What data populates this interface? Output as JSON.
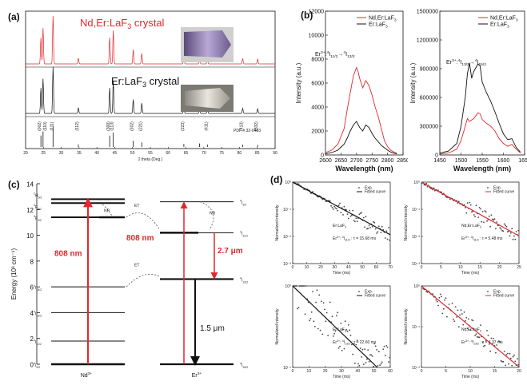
{
  "panel_labels": {
    "a": "(a)",
    "b": "(b)",
    "c": "(c)",
    "d": "(d)"
  },
  "colors": {
    "red": "#e0282e",
    "black": "#111111",
    "gray": "#555555"
  },
  "chart_data": [
    {
      "id": "a",
      "type": "line",
      "series": [
        {
          "name": "Nd,Er:LaF3 crystal",
          "color": "#e0282e"
        },
        {
          "name": "Er:LaF3 crystal",
          "color": "#111111"
        }
      ],
      "xlabel": "2 theta (Deg.)",
      "xlim": [
        20,
        90
      ],
      "x_ticks": [
        "20",
        "25",
        "30",
        "35",
        "40",
        "45",
        "50",
        "55",
        "60",
        "65",
        "70",
        "75",
        "80",
        "85",
        "90"
      ],
      "pdf_label": "PDF # 32-0483",
      "peaks": [
        {
          "x": 24.3,
          "h": 0.55,
          "hkl": "(002)"
        },
        {
          "x": 24.9,
          "h": 0.75,
          "hkl": "(110)"
        },
        {
          "x": 27.7,
          "h": 1.0,
          "hkl": "(111)"
        },
        {
          "x": 34.8,
          "h": 0.12,
          "hkl": "(112)"
        },
        {
          "x": 43.6,
          "h": 0.55,
          "hkl": "(300)"
        },
        {
          "x": 44.6,
          "h": 0.7,
          "hkl": "(113)"
        },
        {
          "x": 50.2,
          "h": 0.3,
          "hkl": "(302)"
        },
        {
          "x": 52.6,
          "h": 0.22,
          "hkl": "(221)"
        },
        {
          "x": 64.4,
          "h": 0.15,
          "hkl": "(223)"
        },
        {
          "x": 68.8,
          "h": 0.17,
          "hkl": ""
        },
        {
          "x": 71.0,
          "h": 0.12,
          "hkl": "(411)"
        },
        {
          "x": 80.9,
          "h": 0.11,
          "hkl": "(413)"
        },
        {
          "x": 85.1,
          "h": 0.1,
          "hkl": "(332)"
        }
      ]
    },
    {
      "id": "b-left",
      "type": "line",
      "xlabel": "Wavelength (nm)",
      "ylabel": "Intensity (a.u.)",
      "xlim": [
        2600,
        2850
      ],
      "ylim": [
        0,
        12000
      ],
      "x_ticks": [
        "2600",
        "2650",
        "2700",
        "2750",
        "2800",
        "2850"
      ],
      "y_ticks": [
        "0",
        "2000",
        "4000",
        "6000",
        "8000",
        "10000",
        "12000"
      ],
      "annotation": "Er3+:4I11/2→4I13/2",
      "legend": [
        "Nd,Er:LaF3",
        "Er:LaF3"
      ],
      "series": [
        {
          "name": "Nd,Er:LaF3",
          "color": "#e0282e",
          "x": [
            2600,
            2620,
            2640,
            2660,
            2670,
            2680,
            2690,
            2700,
            2705,
            2710,
            2720,
            2730,
            2740,
            2750,
            2760,
            2770,
            2780,
            2790,
            2800,
            2810,
            2820,
            2830
          ],
          "y": [
            200,
            400,
            900,
            2200,
            3800,
            5200,
            6600,
            7300,
            7000,
            6400,
            5600,
            6200,
            5800,
            5000,
            4000,
            3200,
            2200,
            1200,
            700,
            400,
            250,
            150
          ]
        },
        {
          "name": "Er:LaF3",
          "color": "#111111",
          "x": [
            2600,
            2620,
            2640,
            2660,
            2670,
            2680,
            2690,
            2700,
            2710,
            2720,
            2730,
            2740,
            2750,
            2760,
            2770,
            2780,
            2790,
            2800,
            2810,
            2820,
            2830
          ],
          "y": [
            100,
            200,
            400,
            900,
            1400,
            2000,
            2500,
            2800,
            2300,
            2000,
            2500,
            2300,
            1800,
            1400,
            1100,
            800,
            600,
            400,
            250,
            150,
            100
          ]
        }
      ]
    },
    {
      "id": "b-right",
      "type": "line",
      "xlabel": "Wavelength (nm)",
      "ylabel": "Intensity (a.u.)",
      "xlim": [
        1450,
        1650
      ],
      "ylim": [
        0,
        1500000
      ],
      "x_ticks": [
        "1450",
        "1500",
        "1550",
        "1600",
        "1650"
      ],
      "y_ticks": [
        "0",
        "300000",
        "600000",
        "900000",
        "1200000",
        "1500000"
      ],
      "annotation": "Er3+:4I13/2→4I15/2",
      "legend": [
        "Nd,Er:LaF3",
        "Er:LaF3"
      ],
      "series": [
        {
          "name": "Nd,Er:LaF3",
          "color": "#e0282e",
          "x": [
            1450,
            1470,
            1490,
            1500,
            1510,
            1515,
            1520,
            1530,
            1540,
            1545,
            1550,
            1560,
            1570,
            1580,
            1590,
            1600,
            1610,
            1620,
            1630,
            1640
          ],
          "y": [
            10000,
            20000,
            60000,
            150000,
            300000,
            380000,
            350000,
            380000,
            440000,
            430000,
            370000,
            330000,
            300000,
            250000,
            170000,
            120000,
            90000,
            110000,
            60000,
            20000
          ]
        },
        {
          "name": "Er:LaF3",
          "color": "#111111",
          "x": [
            1450,
            1470,
            1490,
            1500,
            1510,
            1515,
            1520,
            1525,
            1530,
            1540,
            1545,
            1550,
            1560,
            1570,
            1580,
            1590,
            1600,
            1610,
            1620,
            1630,
            1640
          ],
          "y": [
            20000,
            40000,
            120000,
            300000,
            600000,
            850000,
            960000,
            800000,
            870000,
            950000,
            930000,
            760000,
            650000,
            560000,
            450000,
            330000,
            220000,
            160000,
            170000,
            80000,
            30000
          ]
        }
      ]
    },
    {
      "id": "c",
      "type": "table",
      "ylabel": "Energy (10³ cm⁻¹)",
      "ylim": [
        0,
        14
      ],
      "y_ticks": [
        "0",
        "2",
        "4",
        "6",
        "8",
        "10",
        "12",
        "14"
      ],
      "nd_levels": [
        {
          "e": 0,
          "label": "4I9/2"
        },
        {
          "e": 1.8,
          "label": "4I11/2"
        },
        {
          "e": 4.0,
          "label": "4I13/2"
        },
        {
          "e": 6.0,
          "label": "4I15/2"
        },
        {
          "e": 11.4,
          "label": "4F3/2"
        },
        {
          "e": 12.5,
          "label": "4F5/2"
        },
        {
          "e": 12.8,
          "label": "2H9/2"
        }
      ],
      "er_levels": [
        {
          "e": 0,
          "label": "4I15/2"
        },
        {
          "e": 6.6,
          "label": "4I13/2"
        },
        {
          "e": 10.2,
          "label": "4I11/2"
        },
        {
          "e": 12.6,
          "label": "4I9/2"
        }
      ],
      "ion_labels": [
        "Nd3+",
        "Er3+"
      ],
      "annotations": [
        "808 nm",
        "808 nm",
        "2.7 μm",
        "1.5 μm",
        "ET",
        "ET",
        "NR",
        "NR"
      ]
    },
    {
      "id": "d1",
      "type": "scatter",
      "xlabel": "Time (ms)",
      "ylabel": "Normalized intensity",
      "xlim": [
        0,
        70
      ],
      "ylog": [
        0.001,
        1
      ],
      "x_ticks": [
        "0",
        "10",
        "20",
        "30",
        "40",
        "50",
        "60",
        "70"
      ],
      "y_ticks": [
        "10⁻³",
        "10⁻²",
        "10⁻¹",
        "10⁰"
      ],
      "sample": "Er:LaF3",
      "tau_label": "Er3+: 4I11/2 : τ = 15.68 ms",
      "tau": 15.68,
      "noise_from": 25,
      "legend": [
        "Exp.",
        "Fitted curve"
      ],
      "fit_color": "#111111",
      "label_color": "#111111"
    },
    {
      "id": "d2",
      "type": "scatter",
      "xlabel": "Time (ms)",
      "ylabel": "Normalized intensity",
      "xlim": [
        0,
        25
      ],
      "ylog": [
        0.001,
        1
      ],
      "x_ticks": [
        "0",
        "5",
        "10",
        "15",
        "20",
        "25"
      ],
      "y_ticks": [
        "10⁻³",
        "10⁻²",
        "10⁻¹",
        "10⁰"
      ],
      "sample": "Nd,Er:LaF3",
      "tau_label": "Er3+: 4I11/2 : τ = 5.48 ms",
      "tau": 5.48,
      "noise_from": 30,
      "legend": [
        "Exp.",
        "Fitted curve"
      ],
      "fit_color": "#e0282e",
      "label_color": "#e0282e"
    },
    {
      "id": "d3",
      "type": "scatter",
      "xlabel": "Time (ms)",
      "ylabel": "Normalized intensity",
      "xlim": [
        0,
        60
      ],
      "ylog": [
        0.1,
        1
      ],
      "x_ticks": [
        "0",
        "10",
        "20",
        "30",
        "40",
        "50",
        "60"
      ],
      "y_ticks": [
        "10⁻¹",
        "10⁰"
      ],
      "sample": "Er:LaF3",
      "tau_label": "Er3+: 4I13/2 : τ = 22.60 ms",
      "tau": 22.6,
      "noise_from": 0,
      "legend": [
        "Exp.",
        "Fitted curve"
      ],
      "fit_color": "#111111",
      "label_color": "#111111"
    },
    {
      "id": "d4",
      "type": "scatter",
      "xlabel": "Time (ms)",
      "ylabel": "Normalized intensity",
      "xlim": [
        0,
        20
      ],
      "ylog": [
        0.01,
        1
      ],
      "x_ticks": [
        "0",
        "5",
        "10",
        "15",
        "20"
      ],
      "y_ticks": [
        "10⁻²",
        "10⁻¹",
        "10⁰"
      ],
      "sample": "Nd,Er:LaF3",
      "tau_label": "Er3+: 4I13/2 : τ = 4.37 ms",
      "tau": 4.37,
      "noise_from": 14,
      "legend": [
        "Exp.",
        "Fitted curve"
      ],
      "fit_color": "#e0282e",
      "label_color": "#e0282e"
    }
  ]
}
